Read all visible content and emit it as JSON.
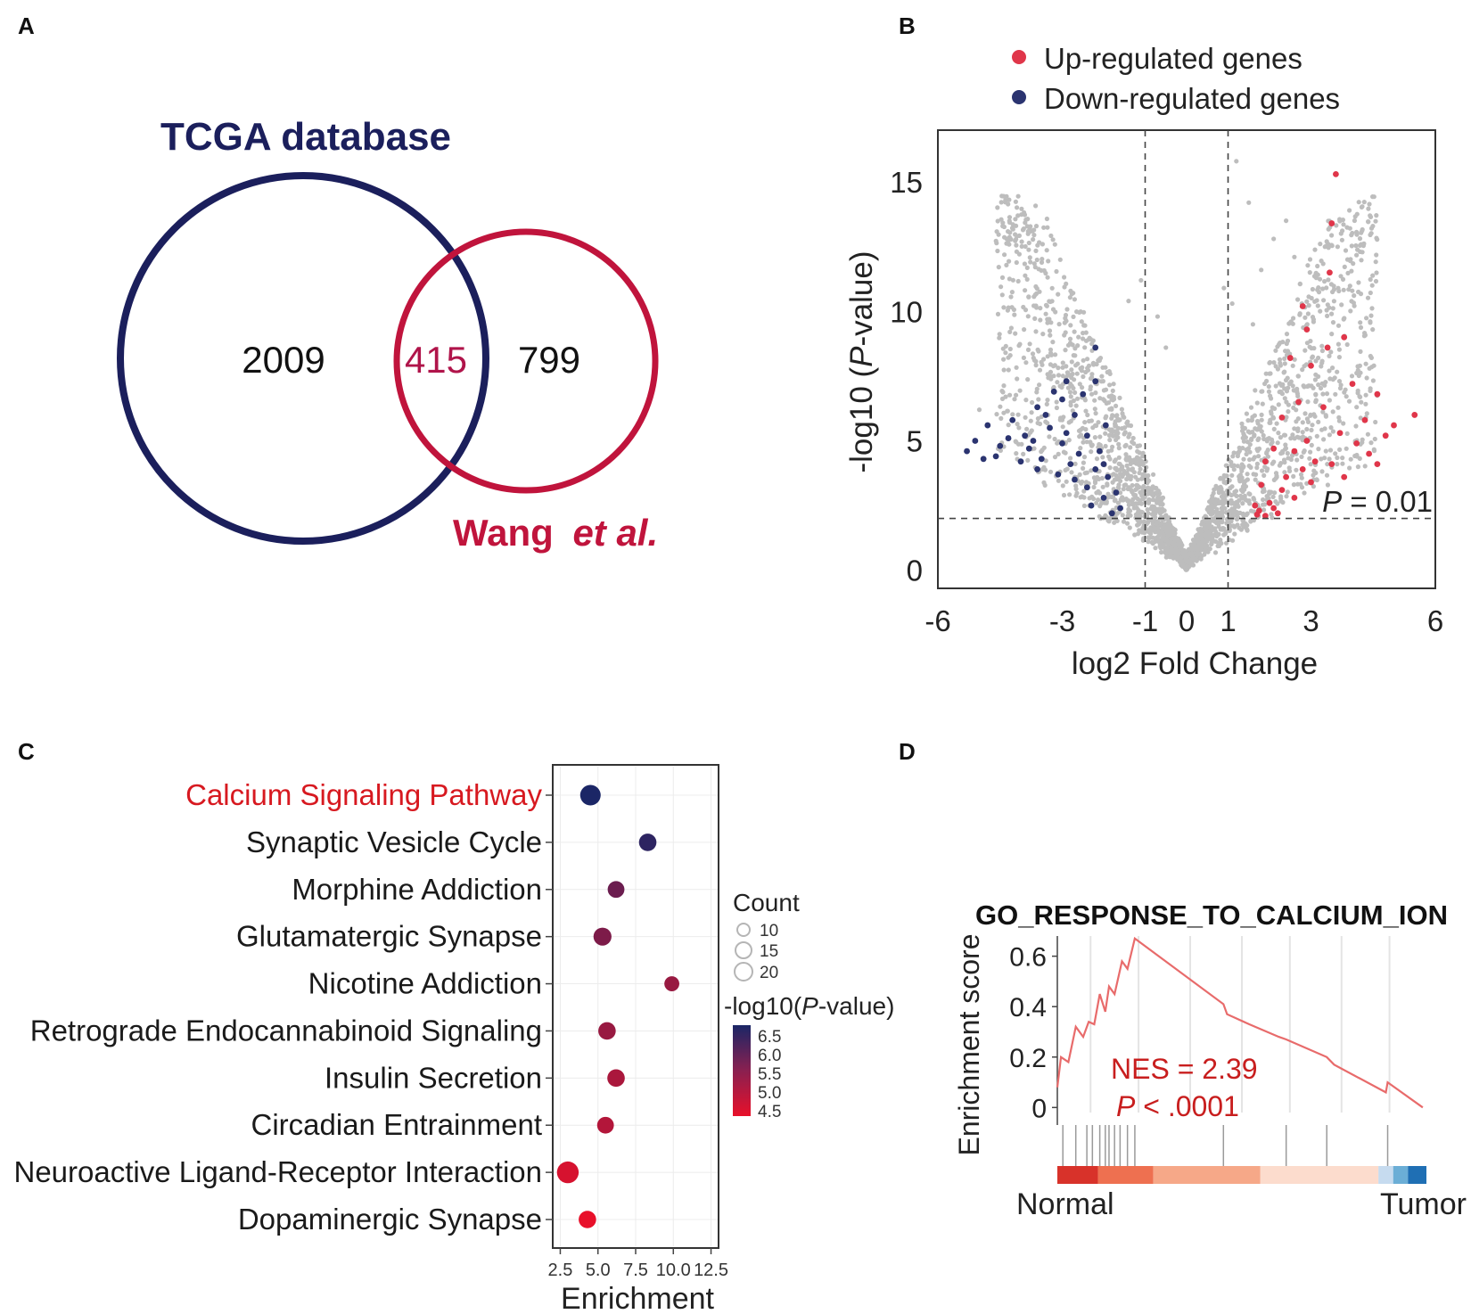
{
  "panels": {
    "a": {
      "label": "A"
    },
    "b": {
      "label": "B"
    },
    "c": {
      "label": "C"
    },
    "d": {
      "label": "D"
    }
  },
  "chart_data": [
    {
      "type": "venn",
      "panel": "A",
      "sets": [
        {
          "name": "TCGA database",
          "only": "2009",
          "color": "#1b1f5c"
        },
        {
          "name_main": "Wang",
          "name_italic": "et al.",
          "only": "799",
          "color": "#c0143c"
        }
      ],
      "intersection": "415"
    },
    {
      "type": "scatter",
      "panel": "B",
      "xlabel": "log2 Fold Change",
      "ylabel_prefix": "-log10 (",
      "ylabel_italic": "P",
      "ylabel_suffix": "-value)",
      "xlim": [
        -6,
        6
      ],
      "ylim": [
        -0.7,
        17
      ],
      "xticks": [
        -6,
        -3,
        -1,
        0,
        1,
        3,
        6
      ],
      "yticks": [
        0,
        5,
        10,
        15
      ],
      "threshold": {
        "x": [
          -1,
          1
        ],
        "y": 2,
        "label_italic": "P",
        "label_rest": " = 0.01"
      },
      "legend": [
        {
          "label": "Up-regulated genes",
          "color": "#e0364a"
        },
        {
          "label": "Down-regulated genes",
          "color": "#2b3470"
        }
      ],
      "colors": {
        "up": "#e0364a",
        "down": "#2b3470",
        "ns": "#bdbdbd"
      },
      "highlighted_up": [
        [
          3.6,
          15.3
        ],
        [
          3.5,
          13.4
        ],
        [
          3.45,
          11.5
        ],
        [
          2.8,
          10.2
        ],
        [
          2.9,
          9.3
        ],
        [
          3.4,
          8.6
        ],
        [
          3.8,
          9.0
        ],
        [
          2.5,
          8.2
        ],
        [
          3.0,
          7.9
        ],
        [
          4.0,
          7.2
        ],
        [
          4.6,
          6.8
        ],
        [
          5.5,
          6.0
        ],
        [
          4.8,
          5.2
        ],
        [
          5.0,
          5.6
        ],
        [
          3.3,
          6.3
        ],
        [
          2.7,
          6.5
        ],
        [
          2.3,
          5.9
        ],
        [
          4.3,
          5.8
        ],
        [
          4.1,
          4.9
        ],
        [
          3.7,
          5.3
        ],
        [
          2.9,
          5.0
        ],
        [
          2.6,
          4.6
        ],
        [
          2.1,
          4.7
        ],
        [
          1.9,
          4.2
        ],
        [
          3.5,
          4.1
        ],
        [
          4.4,
          4.5
        ],
        [
          3.1,
          4.2
        ],
        [
          2.4,
          3.6
        ],
        [
          1.8,
          3.3
        ],
        [
          2.0,
          2.6
        ],
        [
          1.75,
          2.3
        ],
        [
          2.2,
          2.2
        ],
        [
          1.9,
          2.1
        ],
        [
          2.6,
          2.8
        ],
        [
          3.0,
          3.4
        ],
        [
          1.65,
          2.5
        ],
        [
          2.3,
          3.1
        ],
        [
          3.8,
          3.6
        ],
        [
          2.8,
          3.9
        ],
        [
          4.6,
          4.1
        ],
        [
          2.1,
          2.4
        ],
        [
          1.7,
          2.15
        ]
      ],
      "highlighted_down": [
        [
          -2.2,
          8.6
        ],
        [
          -2.2,
          7.3
        ],
        [
          -5.1,
          5.0
        ],
        [
          -4.8,
          5.6
        ],
        [
          -4.5,
          4.8
        ],
        [
          -4.2,
          5.8
        ],
        [
          -3.9,
          5.2
        ],
        [
          -3.6,
          6.3
        ],
        [
          -3.3,
          5.5
        ],
        [
          -3.0,
          6.6
        ],
        [
          -2.7,
          6.0
        ],
        [
          -2.4,
          5.2
        ],
        [
          -2.1,
          4.6
        ],
        [
          -1.9,
          3.6
        ],
        [
          -1.7,
          3.0
        ],
        [
          -1.6,
          2.4
        ],
        [
          -2.4,
          3.2
        ],
        [
          -2.8,
          4.1
        ],
        [
          -3.1,
          3.7
        ],
        [
          -3.5,
          4.3
        ],
        [
          -4.0,
          4.2
        ],
        [
          -4.6,
          4.4
        ],
        [
          -3.7,
          5.0
        ],
        [
          -3.2,
          6.9
        ],
        [
          -2.9,
          7.3
        ],
        [
          -2.5,
          6.8
        ],
        [
          -2.0,
          2.8
        ],
        [
          -1.8,
          2.2
        ],
        [
          -3.4,
          6.0
        ],
        [
          -4.3,
          5.1
        ],
        [
          -2.6,
          4.5
        ],
        [
          -2.2,
          3.9
        ],
        [
          -3.8,
          4.7
        ],
        [
          -2.9,
          5.3
        ],
        [
          -5.3,
          4.6
        ],
        [
          -1.95,
          5.6
        ],
        [
          -2.3,
          2.5
        ],
        [
          -4.9,
          4.3
        ],
        [
          -3.0,
          4.9
        ],
        [
          -2.7,
          3.5
        ],
        [
          -2.0,
          4.1
        ],
        [
          -3.6,
          3.9
        ]
      ]
    },
    {
      "type": "scatter",
      "panel": "C",
      "xlabel": "Enrichment",
      "xlim": [
        2.0,
        13.0
      ],
      "xticks": [
        "2.5",
        "5.0",
        "7.5",
        "10.0",
        "12.5"
      ],
      "categories": [
        "Calcium Signaling Pathway",
        "Synaptic Vesicle Cycle",
        "Morphine Addiction",
        "Glutamatergic Synapse",
        "Nicotine Addiction",
        "Retrograde Endocannabinoid Signaling",
        "Insulin Secretion",
        "Circadian Entrainment",
        "Neuroactive Ligand-Receptor Interaction",
        "Dopaminergic Synapse"
      ],
      "highlight_category": "Calcium Signaling Pathway",
      "highlight_color": "#d71920",
      "enrichment": [
        4.5,
        8.3,
        6.2,
        5.3,
        9.9,
        5.6,
        6.2,
        5.5,
        3.0,
        4.3
      ],
      "count": [
        22,
        17,
        16,
        18,
        13,
        17,
        17,
        16,
        24,
        17
      ],
      "neg_log10_p": [
        6.7,
        6.5,
        5.8,
        5.6,
        5.3,
        5.3,
        5.1,
        5.0,
        4.6,
        4.4
      ],
      "legend_count": {
        "title": "Count",
        "values": [
          "10",
          "15",
          "20"
        ]
      },
      "legend_color": {
        "title_prefix": "-log10(",
        "title_italic": "P",
        "title_suffix": "-value)",
        "ticks": [
          "6.5",
          "6.0",
          "5.5",
          "5.0",
          "4.5"
        ],
        "low_color": "#e8102a",
        "high_color": "#1b2666"
      }
    },
    {
      "type": "line",
      "panel": "D",
      "title": "GO_RESPONSE_TO_CALCIUM_ION",
      "ylabel": "Enrichment score",
      "yticks": [
        "0",
        "0.2",
        "0.4",
        "0.6"
      ],
      "ylim": [
        -0.02,
        0.68
      ],
      "xlim": [
        0,
        100
      ],
      "line_color": "#e86b6b",
      "running_score": [
        [
          0,
          0.08
        ],
        [
          1,
          0.2
        ],
        [
          3,
          0.18
        ],
        [
          5,
          0.32
        ],
        [
          7,
          0.28
        ],
        [
          8.5,
          0.34
        ],
        [
          10,
          0.33
        ],
        [
          11.5,
          0.45
        ],
        [
          13,
          0.38
        ],
        [
          14,
          0.48
        ],
        [
          15.5,
          0.45
        ],
        [
          17.5,
          0.58
        ],
        [
          19,
          0.55
        ],
        [
          21,
          0.67
        ],
        [
          45,
          0.41
        ],
        [
          46,
          0.37
        ],
        [
          52,
          0.33
        ],
        [
          60,
          0.28
        ],
        [
          62,
          0.27
        ],
        [
          73,
          0.2
        ],
        [
          75,
          0.17
        ],
        [
          89,
          0.06
        ],
        [
          89.5,
          0.1
        ],
        [
          99,
          0.0
        ]
      ],
      "hits": [
        1.5,
        5,
        8,
        9.5,
        11.5,
        13,
        14,
        15.5,
        17,
        19,
        21,
        45,
        62,
        73,
        89.5
      ],
      "annotation_nes": "NES = 2.39",
      "annotation_p_italic": "P",
      "annotation_p_rest": " < .0001",
      "annotation_color": "#c81e1e",
      "rank_segments": [
        {
          "from": 0,
          "to": 11,
          "color": "#d8322a"
        },
        {
          "from": 11,
          "to": 26,
          "color": "#ee7050"
        },
        {
          "from": 26,
          "to": 55,
          "color": "#f6a888"
        },
        {
          "from": 55,
          "to": 87,
          "color": "#fcdccd"
        },
        {
          "from": 87,
          "to": 91,
          "color": "#c6dbef"
        },
        {
          "from": 91,
          "to": 95,
          "color": "#6baed6"
        },
        {
          "from": 95,
          "to": 100,
          "color": "#1f6fb4"
        }
      ],
      "left_label": "Normal",
      "right_label": "Tumor"
    }
  ]
}
